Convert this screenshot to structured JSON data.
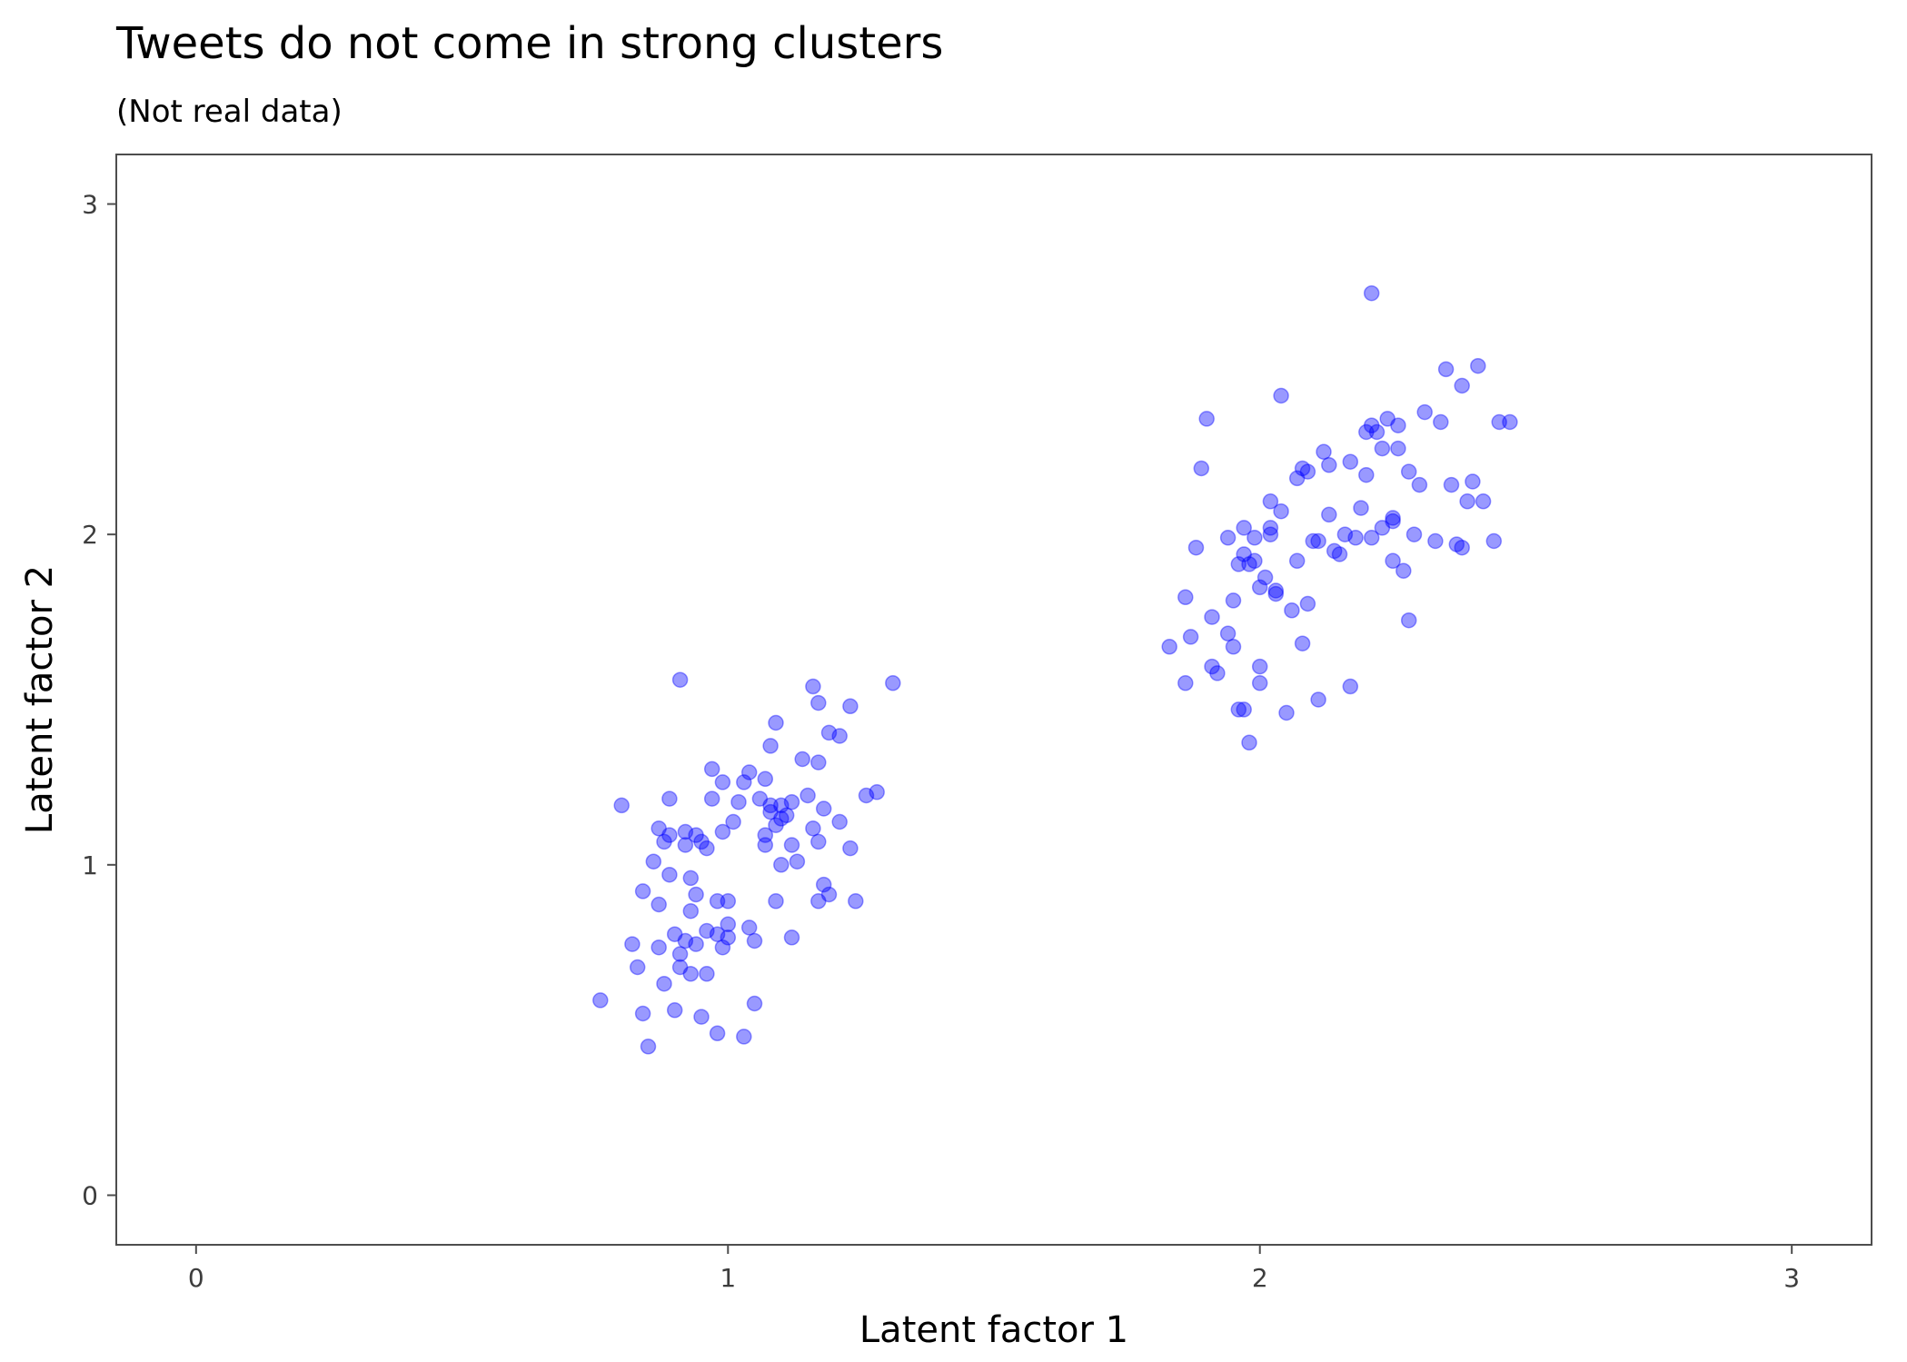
{
  "chart_data": {
    "type": "scatter",
    "title": "Tweets do not come in strong clusters",
    "subtitle": "(Not real data)",
    "xlabel": "Latent factor 1",
    "ylabel": "Latent factor 2",
    "xlim": [
      -0.15,
      3.15
    ],
    "ylim": [
      -0.15,
      3.15
    ],
    "x_ticks": [
      0,
      1,
      2,
      3
    ],
    "y_ticks": [
      0,
      1,
      2,
      3
    ],
    "grid": false,
    "point_color": "#0000ff",
    "point_opacity": 0.4,
    "points": [
      [
        0.76,
        0.59
      ],
      [
        0.8,
        1.18
      ],
      [
        0.82,
        0.76
      ],
      [
        0.83,
        0.69
      ],
      [
        0.84,
        0.55
      ],
      [
        0.84,
        0.92
      ],
      [
        0.85,
        0.45
      ],
      [
        0.86,
        1.01
      ],
      [
        0.87,
        1.11
      ],
      [
        0.87,
        0.88
      ],
      [
        0.87,
        0.75
      ],
      [
        0.88,
        1.07
      ],
      [
        0.88,
        0.64
      ],
      [
        0.89,
        1.2
      ],
      [
        0.89,
        0.97
      ],
      [
        0.89,
        1.09
      ],
      [
        0.9,
        0.79
      ],
      [
        0.9,
        0.56
      ],
      [
        0.91,
        1.56
      ],
      [
        0.91,
        0.73
      ],
      [
        0.91,
        0.69
      ],
      [
        0.92,
        1.1
      ],
      [
        0.92,
        1.06
      ],
      [
        0.92,
        0.77
      ],
      [
        0.93,
        0.96
      ],
      [
        0.93,
        0.86
      ],
      [
        0.93,
        0.67
      ],
      [
        0.94,
        0.91
      ],
      [
        0.94,
        1.09
      ],
      [
        0.94,
        0.76
      ],
      [
        0.95,
        1.07
      ],
      [
        0.95,
        0.54
      ],
      [
        0.96,
        1.05
      ],
      [
        0.96,
        0.8
      ],
      [
        0.96,
        0.67
      ],
      [
        0.97,
        1.2
      ],
      [
        0.97,
        1.29
      ],
      [
        0.98,
        0.49
      ],
      [
        0.98,
        0.89
      ],
      [
        0.98,
        0.79
      ],
      [
        0.99,
        0.75
      ],
      [
        0.99,
        1.1
      ],
      [
        0.99,
        1.25
      ],
      [
        1.0,
        0.78
      ],
      [
        1.0,
        0.82
      ],
      [
        1.0,
        0.89
      ],
      [
        1.01,
        1.13
      ],
      [
        1.02,
        1.19
      ],
      [
        1.03,
        0.48
      ],
      [
        1.03,
        1.25
      ],
      [
        1.04,
        1.28
      ],
      [
        1.04,
        0.81
      ],
      [
        1.05,
        0.58
      ],
      [
        1.05,
        0.77
      ],
      [
        1.06,
        1.2
      ],
      [
        1.07,
        1.06
      ],
      [
        1.07,
        1.09
      ],
      [
        1.07,
        1.26
      ],
      [
        1.08,
        1.36
      ],
      [
        1.08,
        1.16
      ],
      [
        1.08,
        1.18
      ],
      [
        1.09,
        1.43
      ],
      [
        1.09,
        1.12
      ],
      [
        1.09,
        0.89
      ],
      [
        1.1,
        1.0
      ],
      [
        1.1,
        1.18
      ],
      [
        1.1,
        1.14
      ],
      [
        1.11,
        1.15
      ],
      [
        1.12,
        0.78
      ],
      [
        1.12,
        1.06
      ],
      [
        1.12,
        1.19
      ],
      [
        1.13,
        1.01
      ],
      [
        1.14,
        1.32
      ],
      [
        1.15,
        1.21
      ],
      [
        1.16,
        1.11
      ],
      [
        1.16,
        1.54
      ],
      [
        1.17,
        1.07
      ],
      [
        1.17,
        0.89
      ],
      [
        1.17,
        1.49
      ],
      [
        1.17,
        1.31
      ],
      [
        1.18,
        0.94
      ],
      [
        1.18,
        1.17
      ],
      [
        1.19,
        1.4
      ],
      [
        1.19,
        0.91
      ],
      [
        1.21,
        1.13
      ],
      [
        1.21,
        1.39
      ],
      [
        1.23,
        1.48
      ],
      [
        1.23,
        1.05
      ],
      [
        1.24,
        0.89
      ],
      [
        1.26,
        1.21
      ],
      [
        1.28,
        1.22
      ],
      [
        1.31,
        1.55
      ],
      [
        1.83,
        1.66
      ],
      [
        1.86,
        1.55
      ],
      [
        1.86,
        1.81
      ],
      [
        1.87,
        1.69
      ],
      [
        1.88,
        1.96
      ],
      [
        1.89,
        2.2
      ],
      [
        1.9,
        2.35
      ],
      [
        1.91,
        1.75
      ],
      [
        1.91,
        1.6
      ],
      [
        1.92,
        1.58
      ],
      [
        1.94,
        1.7
      ],
      [
        1.94,
        1.99
      ],
      [
        1.95,
        1.66
      ],
      [
        1.95,
        1.8
      ],
      [
        1.96,
        1.47
      ],
      [
        1.96,
        1.91
      ],
      [
        1.97,
        1.94
      ],
      [
        1.97,
        2.02
      ],
      [
        1.97,
        1.47
      ],
      [
        1.98,
        1.91
      ],
      [
        1.98,
        1.37
      ],
      [
        1.99,
        1.92
      ],
      [
        1.99,
        1.99
      ],
      [
        2.0,
        1.84
      ],
      [
        2.0,
        1.55
      ],
      [
        2.0,
        1.6
      ],
      [
        2.01,
        1.87
      ],
      [
        2.02,
        2.0
      ],
      [
        2.02,
        2.1
      ],
      [
        2.02,
        2.02
      ],
      [
        2.03,
        1.82
      ],
      [
        2.03,
        1.83
      ],
      [
        2.04,
        2.42
      ],
      [
        2.04,
        2.07
      ],
      [
        2.05,
        1.46
      ],
      [
        2.06,
        1.77
      ],
      [
        2.07,
        1.92
      ],
      [
        2.07,
        2.17
      ],
      [
        2.08,
        2.2
      ],
      [
        2.08,
        1.67
      ],
      [
        2.09,
        2.19
      ],
      [
        2.09,
        1.79
      ],
      [
        2.1,
        1.98
      ],
      [
        2.11,
        1.98
      ],
      [
        2.11,
        1.5
      ],
      [
        2.12,
        2.25
      ],
      [
        2.13,
        2.06
      ],
      [
        2.13,
        2.21
      ],
      [
        2.14,
        1.95
      ],
      [
        2.15,
        1.94
      ],
      [
        2.16,
        2.0
      ],
      [
        2.17,
        2.22
      ],
      [
        2.17,
        1.54
      ],
      [
        2.18,
        1.99
      ],
      [
        2.19,
        2.08
      ],
      [
        2.2,
        2.18
      ],
      [
        2.2,
        2.31
      ],
      [
        2.21,
        2.33
      ],
      [
        2.21,
        1.99
      ],
      [
        2.22,
        2.31
      ],
      [
        2.23,
        2.02
      ],
      [
        2.23,
        2.26
      ],
      [
        2.24,
        2.35
      ],
      [
        2.25,
        1.92
      ],
      [
        2.25,
        2.04
      ],
      [
        2.25,
        2.05
      ],
      [
        2.26,
        2.33
      ],
      [
        2.26,
        2.26
      ],
      [
        2.27,
        1.89
      ],
      [
        2.28,
        1.74
      ],
      [
        2.28,
        2.19
      ],
      [
        2.29,
        2.0
      ],
      [
        2.3,
        2.15
      ],
      [
        2.31,
        2.37
      ],
      [
        2.33,
        1.98
      ],
      [
        2.34,
        2.34
      ],
      [
        2.35,
        2.5
      ],
      [
        2.36,
        2.15
      ],
      [
        2.37,
        1.97
      ],
      [
        2.38,
        2.45
      ],
      [
        2.38,
        1.96
      ],
      [
        2.39,
        2.1
      ],
      [
        2.4,
        2.16
      ],
      [
        2.41,
        2.51
      ],
      [
        2.42,
        2.1
      ],
      [
        2.44,
        1.98
      ],
      [
        2.45,
        2.34
      ],
      [
        2.47,
        2.34
      ],
      [
        2.21,
        2.73
      ]
    ]
  }
}
